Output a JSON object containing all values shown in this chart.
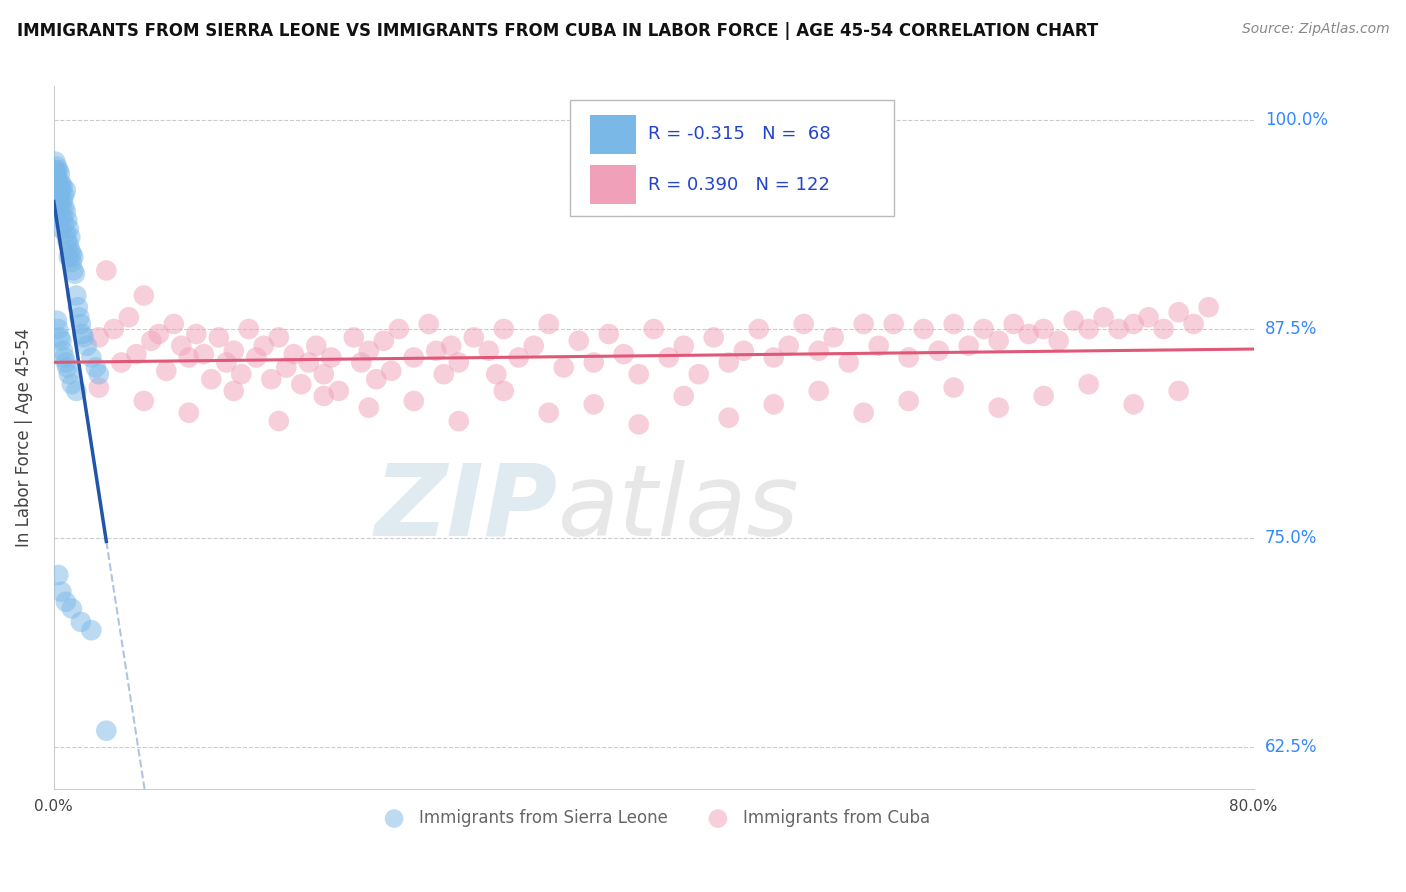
{
  "title": "IMMIGRANTS FROM SIERRA LEONE VS IMMIGRANTS FROM CUBA IN LABOR FORCE | AGE 45-54 CORRELATION CHART",
  "source": "Source: ZipAtlas.com",
  "ylabel": "In Labor Force | Age 45-54",
  "legend_label_blue": "Immigrants from Sierra Leone",
  "legend_label_pink": "Immigrants from Cuba",
  "R_blue": -0.315,
  "N_blue": 68,
  "R_pink": 0.39,
  "N_pink": 122,
  "color_blue": "#7ab8e8",
  "color_pink": "#f0a0b8",
  "line_color_blue": "#2255aa",
  "line_color_pink": "#e05878",
  "xlim": [
    0.0,
    0.8
  ],
  "ylim": [
    0.6,
    1.02
  ],
  "xticks": [
    0.0,
    0.1,
    0.2,
    0.3,
    0.4,
    0.5,
    0.6,
    0.7,
    0.8
  ],
  "xtick_labels": [
    "0.0%",
    "",
    "",
    "",
    "",
    "",
    "",
    "",
    "80.0%"
  ],
  "yticks": [
    0.625,
    0.75,
    0.875,
    1.0
  ],
  "ytick_labels": [
    "62.5%",
    "75.0%",
    "87.5%",
    "100.0%"
  ],
  "blue_points_x": [
    0.001,
    0.001,
    0.001,
    0.002,
    0.002,
    0.002,
    0.002,
    0.003,
    0.003,
    0.003,
    0.003,
    0.004,
    0.004,
    0.004,
    0.004,
    0.005,
    0.005,
    0.005,
    0.005,
    0.006,
    0.006,
    0.006,
    0.007,
    0.007,
    0.007,
    0.008,
    0.008,
    0.008,
    0.009,
    0.009,
    0.01,
    0.01,
    0.01,
    0.011,
    0.011,
    0.012,
    0.012,
    0.013,
    0.013,
    0.014,
    0.015,
    0.016,
    0.017,
    0.018,
    0.019,
    0.02,
    0.022,
    0.025,
    0.028,
    0.03,
    0.002,
    0.003,
    0.004,
    0.005,
    0.006,
    0.007,
    0.008,
    0.009,
    0.01,
    0.012,
    0.015,
    0.003,
    0.005,
    0.008,
    0.012,
    0.018,
    0.025,
    0.035
  ],
  "blue_points_y": [
    0.96,
    0.97,
    0.975,
    0.965,
    0.955,
    0.968,
    0.972,
    0.958,
    0.963,
    0.97,
    0.945,
    0.96,
    0.95,
    0.955,
    0.968,
    0.948,
    0.958,
    0.935,
    0.962,
    0.942,
    0.952,
    0.96,
    0.938,
    0.948,
    0.955,
    0.932,
    0.945,
    0.958,
    0.928,
    0.94,
    0.925,
    0.935,
    0.918,
    0.922,
    0.93,
    0.915,
    0.92,
    0.91,
    0.918,
    0.908,
    0.895,
    0.888,
    0.882,
    0.878,
    0.872,
    0.87,
    0.865,
    0.858,
    0.852,
    0.848,
    0.88,
    0.875,
    0.87,
    0.868,
    0.862,
    0.858,
    0.855,
    0.852,
    0.848,
    0.842,
    0.838,
    0.728,
    0.718,
    0.712,
    0.708,
    0.7,
    0.695,
    0.635
  ],
  "pink_points_x": [
    0.03,
    0.035,
    0.04,
    0.045,
    0.05,
    0.055,
    0.06,
    0.065,
    0.07,
    0.075,
    0.08,
    0.085,
    0.09,
    0.095,
    0.1,
    0.105,
    0.11,
    0.115,
    0.12,
    0.125,
    0.13,
    0.135,
    0.14,
    0.145,
    0.15,
    0.155,
    0.16,
    0.165,
    0.17,
    0.175,
    0.18,
    0.185,
    0.19,
    0.2,
    0.205,
    0.21,
    0.215,
    0.22,
    0.225,
    0.23,
    0.24,
    0.25,
    0.255,
    0.26,
    0.265,
    0.27,
    0.28,
    0.29,
    0.295,
    0.3,
    0.31,
    0.32,
    0.33,
    0.34,
    0.35,
    0.36,
    0.37,
    0.38,
    0.39,
    0.4,
    0.41,
    0.42,
    0.43,
    0.44,
    0.45,
    0.46,
    0.47,
    0.48,
    0.49,
    0.5,
    0.51,
    0.52,
    0.53,
    0.54,
    0.55,
    0.56,
    0.57,
    0.58,
    0.59,
    0.6,
    0.61,
    0.62,
    0.63,
    0.64,
    0.65,
    0.66,
    0.67,
    0.68,
    0.69,
    0.7,
    0.71,
    0.72,
    0.73,
    0.74,
    0.75,
    0.76,
    0.77,
    0.03,
    0.06,
    0.09,
    0.12,
    0.15,
    0.18,
    0.21,
    0.24,
    0.27,
    0.3,
    0.33,
    0.36,
    0.39,
    0.42,
    0.45,
    0.48,
    0.51,
    0.54,
    0.57,
    0.6,
    0.63,
    0.66,
    0.69,
    0.72,
    0.75
  ],
  "pink_points_y": [
    0.87,
    0.91,
    0.875,
    0.855,
    0.882,
    0.86,
    0.895,
    0.868,
    0.872,
    0.85,
    0.878,
    0.865,
    0.858,
    0.872,
    0.86,
    0.845,
    0.87,
    0.855,
    0.862,
    0.848,
    0.875,
    0.858,
    0.865,
    0.845,
    0.87,
    0.852,
    0.86,
    0.842,
    0.855,
    0.865,
    0.848,
    0.858,
    0.838,
    0.87,
    0.855,
    0.862,
    0.845,
    0.868,
    0.85,
    0.875,
    0.858,
    0.878,
    0.862,
    0.848,
    0.865,
    0.855,
    0.87,
    0.862,
    0.848,
    0.875,
    0.858,
    0.865,
    0.878,
    0.852,
    0.868,
    0.855,
    0.872,
    0.86,
    0.848,
    0.875,
    0.858,
    0.865,
    0.848,
    0.87,
    0.855,
    0.862,
    0.875,
    0.858,
    0.865,
    0.878,
    0.862,
    0.87,
    0.855,
    0.878,
    0.865,
    0.878,
    0.858,
    0.875,
    0.862,
    0.878,
    0.865,
    0.875,
    0.868,
    0.878,
    0.872,
    0.875,
    0.868,
    0.88,
    0.875,
    0.882,
    0.875,
    0.878,
    0.882,
    0.875,
    0.885,
    0.878,
    0.888,
    0.84,
    0.832,
    0.825,
    0.838,
    0.82,
    0.835,
    0.828,
    0.832,
    0.82,
    0.838,
    0.825,
    0.83,
    0.818,
    0.835,
    0.822,
    0.83,
    0.838,
    0.825,
    0.832,
    0.84,
    0.828,
    0.835,
    0.842,
    0.83,
    0.838
  ]
}
